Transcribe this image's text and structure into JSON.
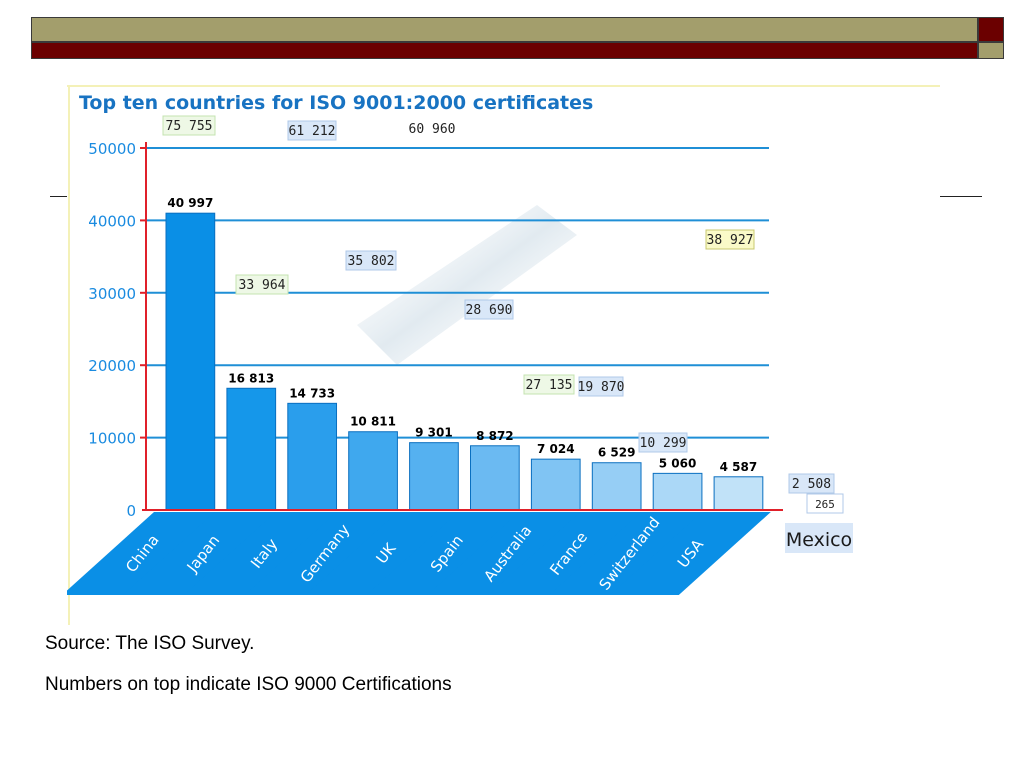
{
  "slide": {
    "source_text": "Source: The ISO Survey.",
    "note_text": "Numbers on top indicate ISO 9000 Certifications",
    "accent_olive": "#a39e6c",
    "accent_maroon": "#6b0000"
  },
  "chart_data": {
    "type": "bar",
    "title": "Top ten countries for ISO 9001:2000 certificates",
    "xlabel": "",
    "ylabel": "",
    "ylim": [
      0,
      50000
    ],
    "yticks": [
      "0",
      "10000",
      "20000",
      "30000",
      "40000",
      "50000"
    ],
    "grid": true,
    "categories": [
      "China",
      "Japan",
      "Italy",
      "Germany",
      "UK",
      "Spain",
      "Australia",
      "France",
      "Switzerland",
      "USA"
    ],
    "values": [
      40997,
      16813,
      14733,
      10811,
      9301,
      8872,
      7024,
      6529,
      5060,
      4587
    ],
    "value_labels": [
      "40 997",
      "16 813",
      "14 733",
      "10 811",
      "9 301",
      "8 872",
      "7 024",
      "6 529",
      "5 060",
      "4 587"
    ],
    "annotations": [
      "75 755",
      "61 212",
      "60 960",
      "33 964",
      "35 802",
      "28 690",
      "27 135",
      "19 870",
      "10 299",
      "38 927",
      "2 508",
      "265"
    ],
    "extra_category": "Mexico",
    "bar_color": "#0a8fe6",
    "axis_color": "#e0202a",
    "grid_color": "#1f8fd6"
  }
}
